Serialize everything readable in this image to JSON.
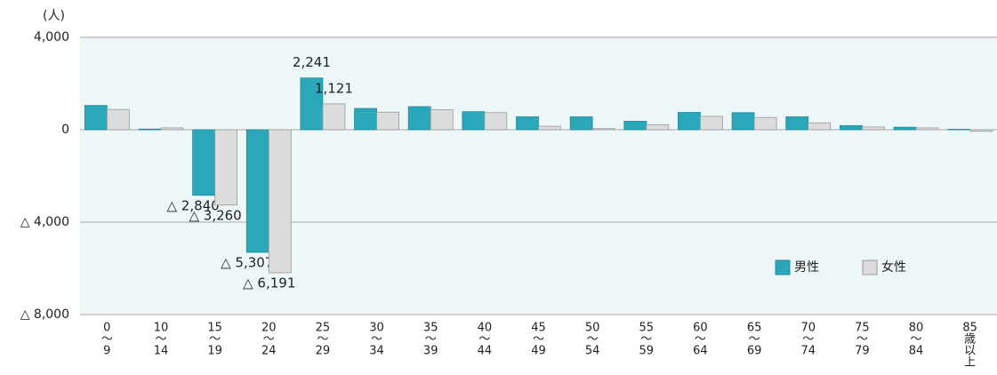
{
  "chart_data": {
    "type": "bar",
    "unit_label": "(人)",
    "categories": [
      [
        "0",
        "〜",
        "9"
      ],
      [
        "10",
        "〜",
        "14"
      ],
      [
        "15",
        "〜",
        "19"
      ],
      [
        "20",
        "〜",
        "24"
      ],
      [
        "25",
        "〜",
        "29"
      ],
      [
        "30",
        "〜",
        "34"
      ],
      [
        "35",
        "〜",
        "39"
      ],
      [
        "40",
        "〜",
        "44"
      ],
      [
        "45",
        "〜",
        "49"
      ],
      [
        "50",
        "〜",
        "54"
      ],
      [
        "55",
        "〜",
        "59"
      ],
      [
        "60",
        "〜",
        "64"
      ],
      [
        "65",
        "〜",
        "69"
      ],
      [
        "70",
        "〜",
        "74"
      ],
      [
        "75",
        "〜",
        "79"
      ],
      [
        "80",
        "〜",
        "84"
      ],
      [
        "85",
        "歳",
        "以",
        "上"
      ]
    ],
    "series": [
      {
        "name": "男性",
        "color": "#2aa7b8",
        "values": [
          1050,
          30,
          -2840,
          -5307,
          2241,
          920,
          1000,
          780,
          560,
          560,
          370,
          750,
          740,
          560,
          180,
          110,
          20
        ],
        "value_labels": [
          null,
          null,
          "△ 2,840",
          "△ 5,307",
          "2,241",
          null,
          null,
          null,
          null,
          null,
          null,
          null,
          null,
          null,
          null,
          null,
          null
        ]
      },
      {
        "name": "女性",
        "color": "#dcdcdc",
        "values": [
          880,
          80,
          -3260,
          -6191,
          1121,
          760,
          870,
          740,
          150,
          50,
          220,
          580,
          530,
          300,
          120,
          80,
          -70
        ],
        "value_labels": [
          null,
          null,
          "△ 3,260",
          "△ 6,191",
          "1,121",
          null,
          null,
          null,
          null,
          null,
          null,
          null,
          null,
          null,
          null,
          null,
          null
        ]
      }
    ],
    "ylim": [
      -8000,
      4000
    ],
    "yticks": [
      {
        "value": -8000,
        "label": "△ 8,000"
      },
      {
        "value": -4000,
        "label": "△ 4,000"
      },
      0,
      {
        "value": 4000,
        "label": "4,000"
      }
    ],
    "grid": true,
    "legend": "right"
  }
}
